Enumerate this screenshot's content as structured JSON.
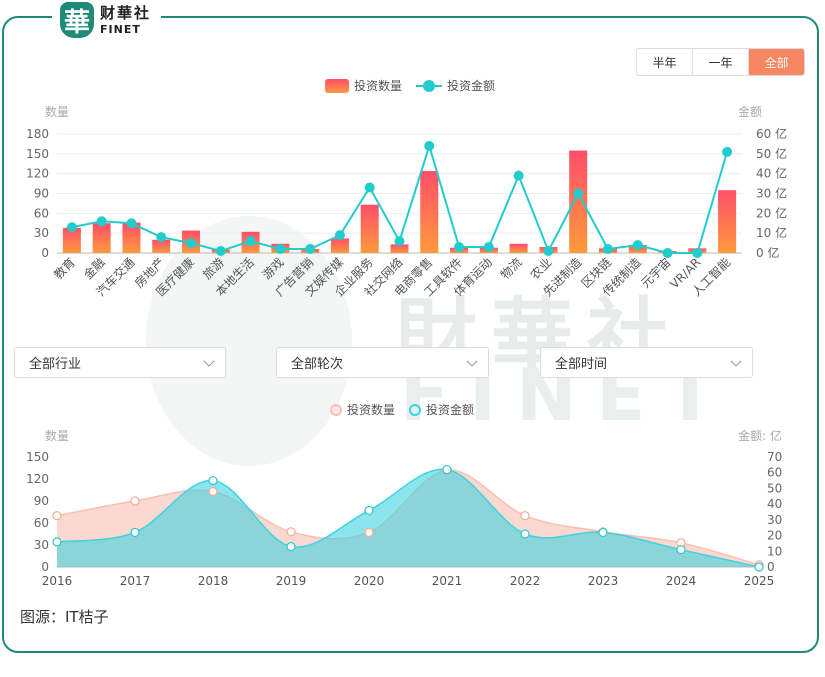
{
  "brand": {
    "badge": "華",
    "name_cn": "财華社",
    "name_en": "FINET"
  },
  "watermark": {
    "cn": "財華社",
    "en": "FINET"
  },
  "range_tabs": [
    {
      "label": "半年",
      "active": false
    },
    {
      "label": "一年",
      "active": false
    },
    {
      "label": "全部",
      "active": true
    }
  ],
  "filters": {
    "industry": "全部行业",
    "round": "全部轮次",
    "time": "全部时间"
  },
  "source": "图源：IT桔子",
  "colors": {
    "bar_top": "#ff4e6a",
    "bar_bottom": "#ff9a3c",
    "line": "#22cccc",
    "count_area": "#f9bfb0",
    "amount_area": "#3fd2e0",
    "accent": "#f78663",
    "frame": "#1f8a78"
  },
  "chart_data": [
    {
      "type": "bar",
      "legend": [
        "投资数量",
        "投资金额"
      ],
      "ylabel_left": "数量",
      "ylabel_right": "金额",
      "yticks_left": [
        "0",
        "30",
        "60",
        "90",
        "120",
        "150",
        "180"
      ],
      "yticks_right": [
        "0 亿",
        "10 亿",
        "20 亿",
        "30 亿",
        "40 亿",
        "50 亿",
        "60 亿"
      ],
      "ylim_left": [
        0,
        180
      ],
      "ylim_right": [
        0,
        60
      ],
      "categories": [
        "教育",
        "金融",
        "汽车交通",
        "房地产",
        "医疗健康",
        "旅游",
        "本地生活",
        "游戏",
        "广告营销",
        "文娱传媒",
        "企业服务",
        "社交网络",
        "电商零售",
        "工具软件",
        "体育运动",
        "物流",
        "农业",
        "先进制造",
        "区块链",
        "传统制造",
        "元宇宙",
        "VR/AR",
        "人工智能"
      ],
      "series": [
        {
          "name": "投资数量",
          "kind": "bar",
          "axis": "left",
          "values": [
            38,
            45,
            46,
            20,
            34,
            5,
            32,
            14,
            6,
            22,
            73,
            13,
            124,
            8,
            8,
            14,
            9,
            155,
            7,
            12,
            3,
            7,
            95
          ]
        },
        {
          "name": "投资金额",
          "kind": "line",
          "axis": "right",
          "values": [
            13,
            16,
            15,
            8,
            5,
            1,
            6,
            2,
            2,
            9,
            33,
            6,
            54,
            3,
            3,
            39,
            1,
            30,
            2,
            4,
            0,
            0,
            51
          ]
        }
      ]
    },
    {
      "type": "area",
      "legend": [
        "投资数量",
        "投资金额"
      ],
      "ylabel_left": "数量",
      "ylabel_right": "金额: 亿",
      "yticks_left": [
        "0",
        "30",
        "60",
        "90",
        "120",
        "150"
      ],
      "yticks_right": [
        "0",
        "10",
        "20",
        "30",
        "40",
        "50",
        "60",
        "70"
      ],
      "ylim_left": [
        0,
        150
      ],
      "ylim_right": [
        0,
        70
      ],
      "x": [
        "2016",
        "2017",
        "2018",
        "2019",
        "2020",
        "2021",
        "2022",
        "2023",
        "2024",
        "2025"
      ],
      "series": [
        {
          "name": "投资数量",
          "axis": "left",
          "values": [
            70,
            90,
            103,
            48,
            47,
            132,
            70,
            48,
            33,
            3
          ]
        },
        {
          "name": "投资金额",
          "axis": "right",
          "values": [
            16,
            22,
            55,
            13,
            36,
            62,
            21,
            22,
            11,
            0
          ]
        }
      ]
    }
  ]
}
